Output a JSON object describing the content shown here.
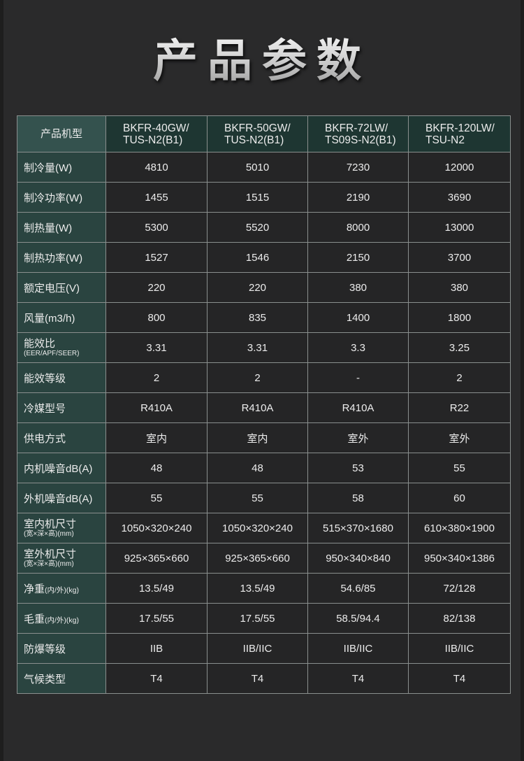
{
  "title": "产品参数",
  "table": {
    "header": {
      "label": "产品机型",
      "models": [
        [
          "BKFR-40GW/",
          "TUS-N2(B1)"
        ],
        [
          "BKFR-50GW/",
          "TUS-N2(B1)"
        ],
        [
          "BKFR-72LW/",
          "TS09S-N2(B1)"
        ],
        [
          "BKFR-120LW/",
          "TSU-N2"
        ]
      ]
    },
    "rows": [
      {
        "label": "制冷量(W)",
        "values": [
          "4810",
          "5010",
          "7230",
          "12000"
        ]
      },
      {
        "label": "制冷功率(W)",
        "values": [
          "1455",
          "1515",
          "2190",
          "3690"
        ]
      },
      {
        "label": "制热量(W)",
        "values": [
          "5300",
          "5520",
          "8000",
          "13000"
        ]
      },
      {
        "label": "制热功率(W)",
        "values": [
          "1527",
          "1546",
          "2150",
          "3700"
        ]
      },
      {
        "label": "额定电压(V)",
        "values": [
          "220",
          "220",
          "380",
          "380"
        ]
      },
      {
        "label": "风量(m3/h)",
        "values": [
          "800",
          "835",
          "1400",
          "1800"
        ]
      },
      {
        "label": "能效比",
        "sub": "(EER/APF/SEER)",
        "values": [
          "3.31",
          "3.31",
          "3.3",
          "3.25"
        ]
      },
      {
        "label": "能效等级",
        "values": [
          "2",
          "2",
          "-",
          "2"
        ]
      },
      {
        "label": "冷媒型号",
        "values": [
          "R410A",
          "R410A",
          "R410A",
          "R22"
        ]
      },
      {
        "label": "供电方式",
        "values": [
          "室内",
          "室内",
          "室外",
          "室外"
        ]
      },
      {
        "label": "内机噪音dB(A)",
        "values": [
          "48",
          "48",
          "53",
          "55"
        ]
      },
      {
        "label": "外机噪音dB(A)",
        "values": [
          "55",
          "55",
          "58",
          "60"
        ]
      },
      {
        "label": "室内机尺寸",
        "sub": "(宽×深×高)(mm)",
        "values": [
          "1050×320×240",
          "1050×320×240",
          "515×370×1680",
          "610×380×1900"
        ]
      },
      {
        "label": "室外机尺寸",
        "sub": "(宽×深×高)(mm)",
        "values": [
          "925×365×660",
          "925×365×660",
          "950×340×840",
          "950×340×1386"
        ]
      },
      {
        "label": "净重",
        "inline_sub": "(内/外)(kg)",
        "values": [
          "13.5/49",
          "13.5/49",
          "54.6/85",
          "72/128"
        ]
      },
      {
        "label": "毛重",
        "inline_sub": "(内/外)(kg)",
        "values": [
          "17.5/55",
          "17.5/55",
          "58.5/94.4",
          "82/138"
        ]
      },
      {
        "label": "防爆等级",
        "values": [
          "IIB",
          "IIB/IIC",
          "IIB/IIC",
          "IIB/IIC"
        ]
      },
      {
        "label": "气候类型",
        "values": [
          "T4",
          "T4",
          "T4",
          "T4"
        ]
      }
    ]
  }
}
